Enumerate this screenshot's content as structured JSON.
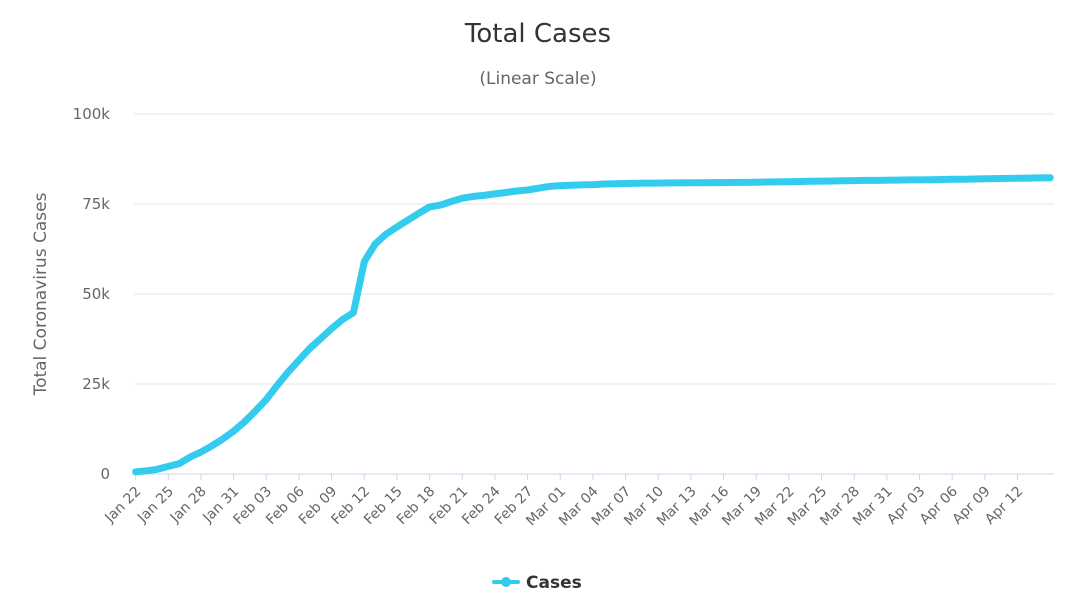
{
  "chart_data": {
    "type": "line",
    "title": "Total Cases",
    "subtitle": "(Linear Scale)",
    "ylabel": "Total Coronavirus Cases",
    "xlabel": "",
    "ylim": [
      0,
      100000
    ],
    "y_ticks": [
      "0",
      "25k",
      "50k",
      "75k",
      "100k"
    ],
    "y_tick_values": [
      0,
      25000,
      50000,
      75000,
      100000
    ],
    "x_tick_labels": [
      "Jan 22",
      "Jan 25",
      "Jan 28",
      "Jan 31",
      "Feb 03",
      "Feb 06",
      "Feb 09",
      "Feb 12",
      "Feb 15",
      "Feb 18",
      "Feb 21",
      "Feb 24",
      "Feb 27",
      "Mar 01",
      "Mar 04",
      "Mar 07",
      "Mar 10",
      "Mar 13",
      "Mar 16",
      "Mar 19",
      "Mar 22",
      "Mar 25",
      "Mar 28",
      "Mar 31",
      "Apr 03",
      "Apr 06",
      "Apr 09",
      "Apr 12"
    ],
    "grid": true,
    "legend_position": "bottom-center",
    "colors": {
      "series": "#33ccee",
      "grid": "#e6e6e6",
      "axis": "#ccd6eb"
    },
    "x": [
      "Jan 22",
      "Jan 23",
      "Jan 24",
      "Jan 25",
      "Jan 26",
      "Jan 27",
      "Jan 28",
      "Jan 29",
      "Jan 30",
      "Jan 31",
      "Feb 01",
      "Feb 02",
      "Feb 03",
      "Feb 04",
      "Feb 05",
      "Feb 06",
      "Feb 07",
      "Feb 08",
      "Feb 09",
      "Feb 10",
      "Feb 11",
      "Feb 12",
      "Feb 13",
      "Feb 14",
      "Feb 15",
      "Feb 16",
      "Feb 17",
      "Feb 18",
      "Feb 19",
      "Feb 20",
      "Feb 21",
      "Feb 22",
      "Feb 23",
      "Feb 24",
      "Feb 25",
      "Feb 26",
      "Feb 27",
      "Feb 28",
      "Feb 29",
      "Mar 01",
      "Mar 02",
      "Mar 03",
      "Mar 04",
      "Mar 05",
      "Mar 06",
      "Mar 07",
      "Mar 08",
      "Mar 09",
      "Mar 10",
      "Mar 11",
      "Mar 12",
      "Mar 13",
      "Mar 14",
      "Mar 15",
      "Mar 16",
      "Mar 17",
      "Mar 18",
      "Mar 19",
      "Mar 20",
      "Mar 21",
      "Mar 22",
      "Mar 23",
      "Mar 24",
      "Mar 25",
      "Mar 26",
      "Mar 27",
      "Mar 28",
      "Mar 29",
      "Mar 30",
      "Mar 31",
      "Apr 01",
      "Apr 02",
      "Apr 03",
      "Apr 04",
      "Apr 05",
      "Apr 06",
      "Apr 07",
      "Apr 08",
      "Apr 09",
      "Apr 10",
      "Apr 11",
      "Apr 12",
      "Apr 13",
      "Apr 14",
      "Apr 15"
    ],
    "series": [
      {
        "name": "Cases",
        "values": [
          600,
          900,
          1300,
          2100,
          2900,
          4700,
          6100,
          7800,
          9700,
          11900,
          14500,
          17500,
          20700,
          24600,
          28300,
          31600,
          34900,
          37600,
          40400,
          42900,
          44800,
          59000,
          63900,
          66600,
          68600,
          70500,
          72400,
          74200,
          74700,
          75700,
          76600,
          77100,
          77400,
          77800,
          78200,
          78600,
          78900,
          79400,
          79900,
          80100,
          80200,
          80300,
          80400,
          80550,
          80650,
          80700,
          80750,
          80800,
          80800,
          80850,
          80850,
          80900,
          80900,
          80950,
          80950,
          81000,
          81000,
          81050,
          81100,
          81150,
          81200,
          81250,
          81300,
          81350,
          81400,
          81450,
          81500,
          81550,
          81550,
          81600,
          81650,
          81700,
          81700,
          81750,
          81800,
          81850,
          81900,
          81950,
          82000,
          82050,
          82100,
          82150,
          82200,
          82250,
          82300
        ]
      }
    ]
  }
}
